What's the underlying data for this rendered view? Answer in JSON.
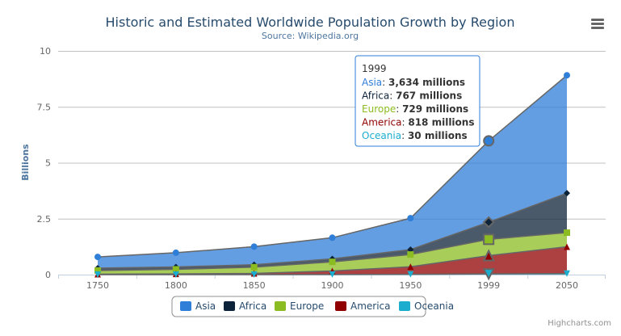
{
  "chart_data": {
    "type": "area",
    "stacking": "normal",
    "title": "Historic and Estimated Worldwide Population Growth by Region",
    "subtitle": "Source: Wikipedia.org",
    "xlabel": "",
    "ylabel": "Billions",
    "categories": [
      "1750",
      "1800",
      "1850",
      "1900",
      "1950",
      "1999",
      "2050"
    ],
    "yticks": [
      "0",
      "2.5",
      "5",
      "7.5",
      "10"
    ],
    "ylim": [
      0,
      10000
    ],
    "grid": true,
    "legend_position": "bottom-center",
    "series": [
      {
        "name": "Asia",
        "color": "#2f7ed8",
        "marker": "circle",
        "values": [
          502,
          635,
          809,
          947,
          1402,
          3634,
          5268
        ]
      },
      {
        "name": "Africa",
        "color": "#0d233a",
        "marker": "diamond",
        "values": [
          106,
          107,
          111,
          133,
          221,
          767,
          1766
        ]
      },
      {
        "name": "Europe",
        "color": "#8bbc21",
        "marker": "square",
        "values": [
          163,
          203,
          276,
          408,
          547,
          729,
          628
        ]
      },
      {
        "name": "America",
        "color": "#910000",
        "marker": "triangle",
        "values": [
          18,
          31,
          54,
          156,
          339,
          818,
          1201
        ]
      },
      {
        "name": "Oceania",
        "color": "#1aadce",
        "marker": "triangle-down",
        "values": [
          2,
          2,
          2,
          6,
          13,
          30,
          46
        ]
      }
    ],
    "tooltip": {
      "header": "1999",
      "unit": "millions",
      "rows": [
        {
          "name": "Asia",
          "value": "3,634 millions"
        },
        {
          "name": "Africa",
          "value": "767 millions"
        },
        {
          "name": "Europe",
          "value": "729 millions"
        },
        {
          "name": "America",
          "value": "818 millions"
        },
        {
          "name": "Oceania",
          "value": "30 millions"
        }
      ]
    }
  },
  "credits": "Highcharts.com",
  "menu_icon": "hamburger-menu-icon"
}
